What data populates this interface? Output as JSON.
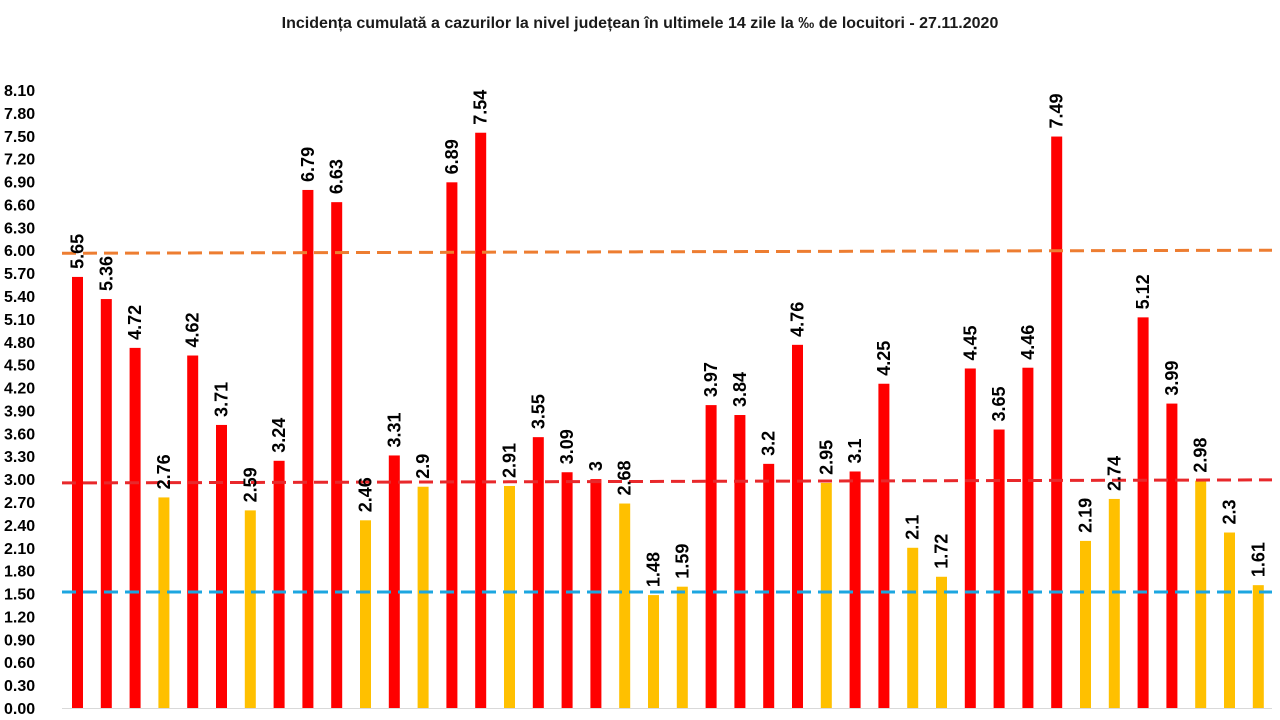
{
  "chart_data": {
    "type": "bar",
    "title": "Incidența cumulată a cazurilor la nivel județean în ultimele 14 zile la ‰ de locuitori - 27.11.2020",
    "xlabel": "",
    "ylabel": "",
    "ylim": [
      0,
      8.1
    ],
    "yticks": [
      "0.00",
      "0.30",
      "0.60",
      "0.90",
      "1.20",
      "1.50",
      "1.80",
      "2.10",
      "2.40",
      "2.70",
      "3.00",
      "3.30",
      "3.60",
      "3.90",
      "4.20",
      "4.50",
      "4.80",
      "5.10",
      "5.40",
      "5.70",
      "6.00",
      "6.30",
      "6.60",
      "6.90",
      "7.20",
      "7.50",
      "7.80",
      "8.10"
    ],
    "values": [
      5.65,
      5.36,
      4.72,
      2.76,
      4.62,
      3.71,
      2.59,
      3.24,
      6.79,
      6.63,
      2.46,
      3.31,
      2.9,
      6.89,
      7.54,
      2.91,
      3.55,
      3.09,
      3,
      2.68,
      1.48,
      1.59,
      3.97,
      3.84,
      3.2,
      4.76,
      2.95,
      3.1,
      4.25,
      2.1,
      1.72,
      4.45,
      3.65,
      4.46,
      7.49,
      2.19,
      2.74,
      5.12,
      3.99,
      2.98,
      2.3,
      1.61
    ],
    "labels": [
      "5.65",
      "5.36",
      "4.72",
      "2.76",
      "4.62",
      "3.71",
      "2.59",
      "3.24",
      "6.79",
      "6.63",
      "2.46",
      "3.31",
      "2.9",
      "6.89",
      "7.54",
      "2.91",
      "3.55",
      "3.09",
      "3",
      "2.68",
      "1.48",
      "1.59",
      "3.97",
      "3.84",
      "3.2",
      "4.76",
      "2.95",
      "3.1",
      "4.25",
      "2.1",
      "1.72",
      "4.45",
      "3.65",
      "4.46",
      "7.49",
      "2.19",
      "2.74",
      "5.12",
      "3.99",
      "2.98",
      "2.3",
      "1.61"
    ],
    "threshold_lines": [
      {
        "name": "threshold-6",
        "value_left": 5.96,
        "value_right": 6.0,
        "color": "#ED7D31"
      },
      {
        "name": "threshold-3",
        "value_left": 2.95,
        "value_right": 2.99,
        "color": "#E8282B"
      },
      {
        "name": "threshold-1.5",
        "value_left": 1.52,
        "value_right": 1.52,
        "color": "#1CA6E0"
      }
    ],
    "colors": {
      "high": "#FF0000",
      "low": "#FFC000"
    }
  }
}
